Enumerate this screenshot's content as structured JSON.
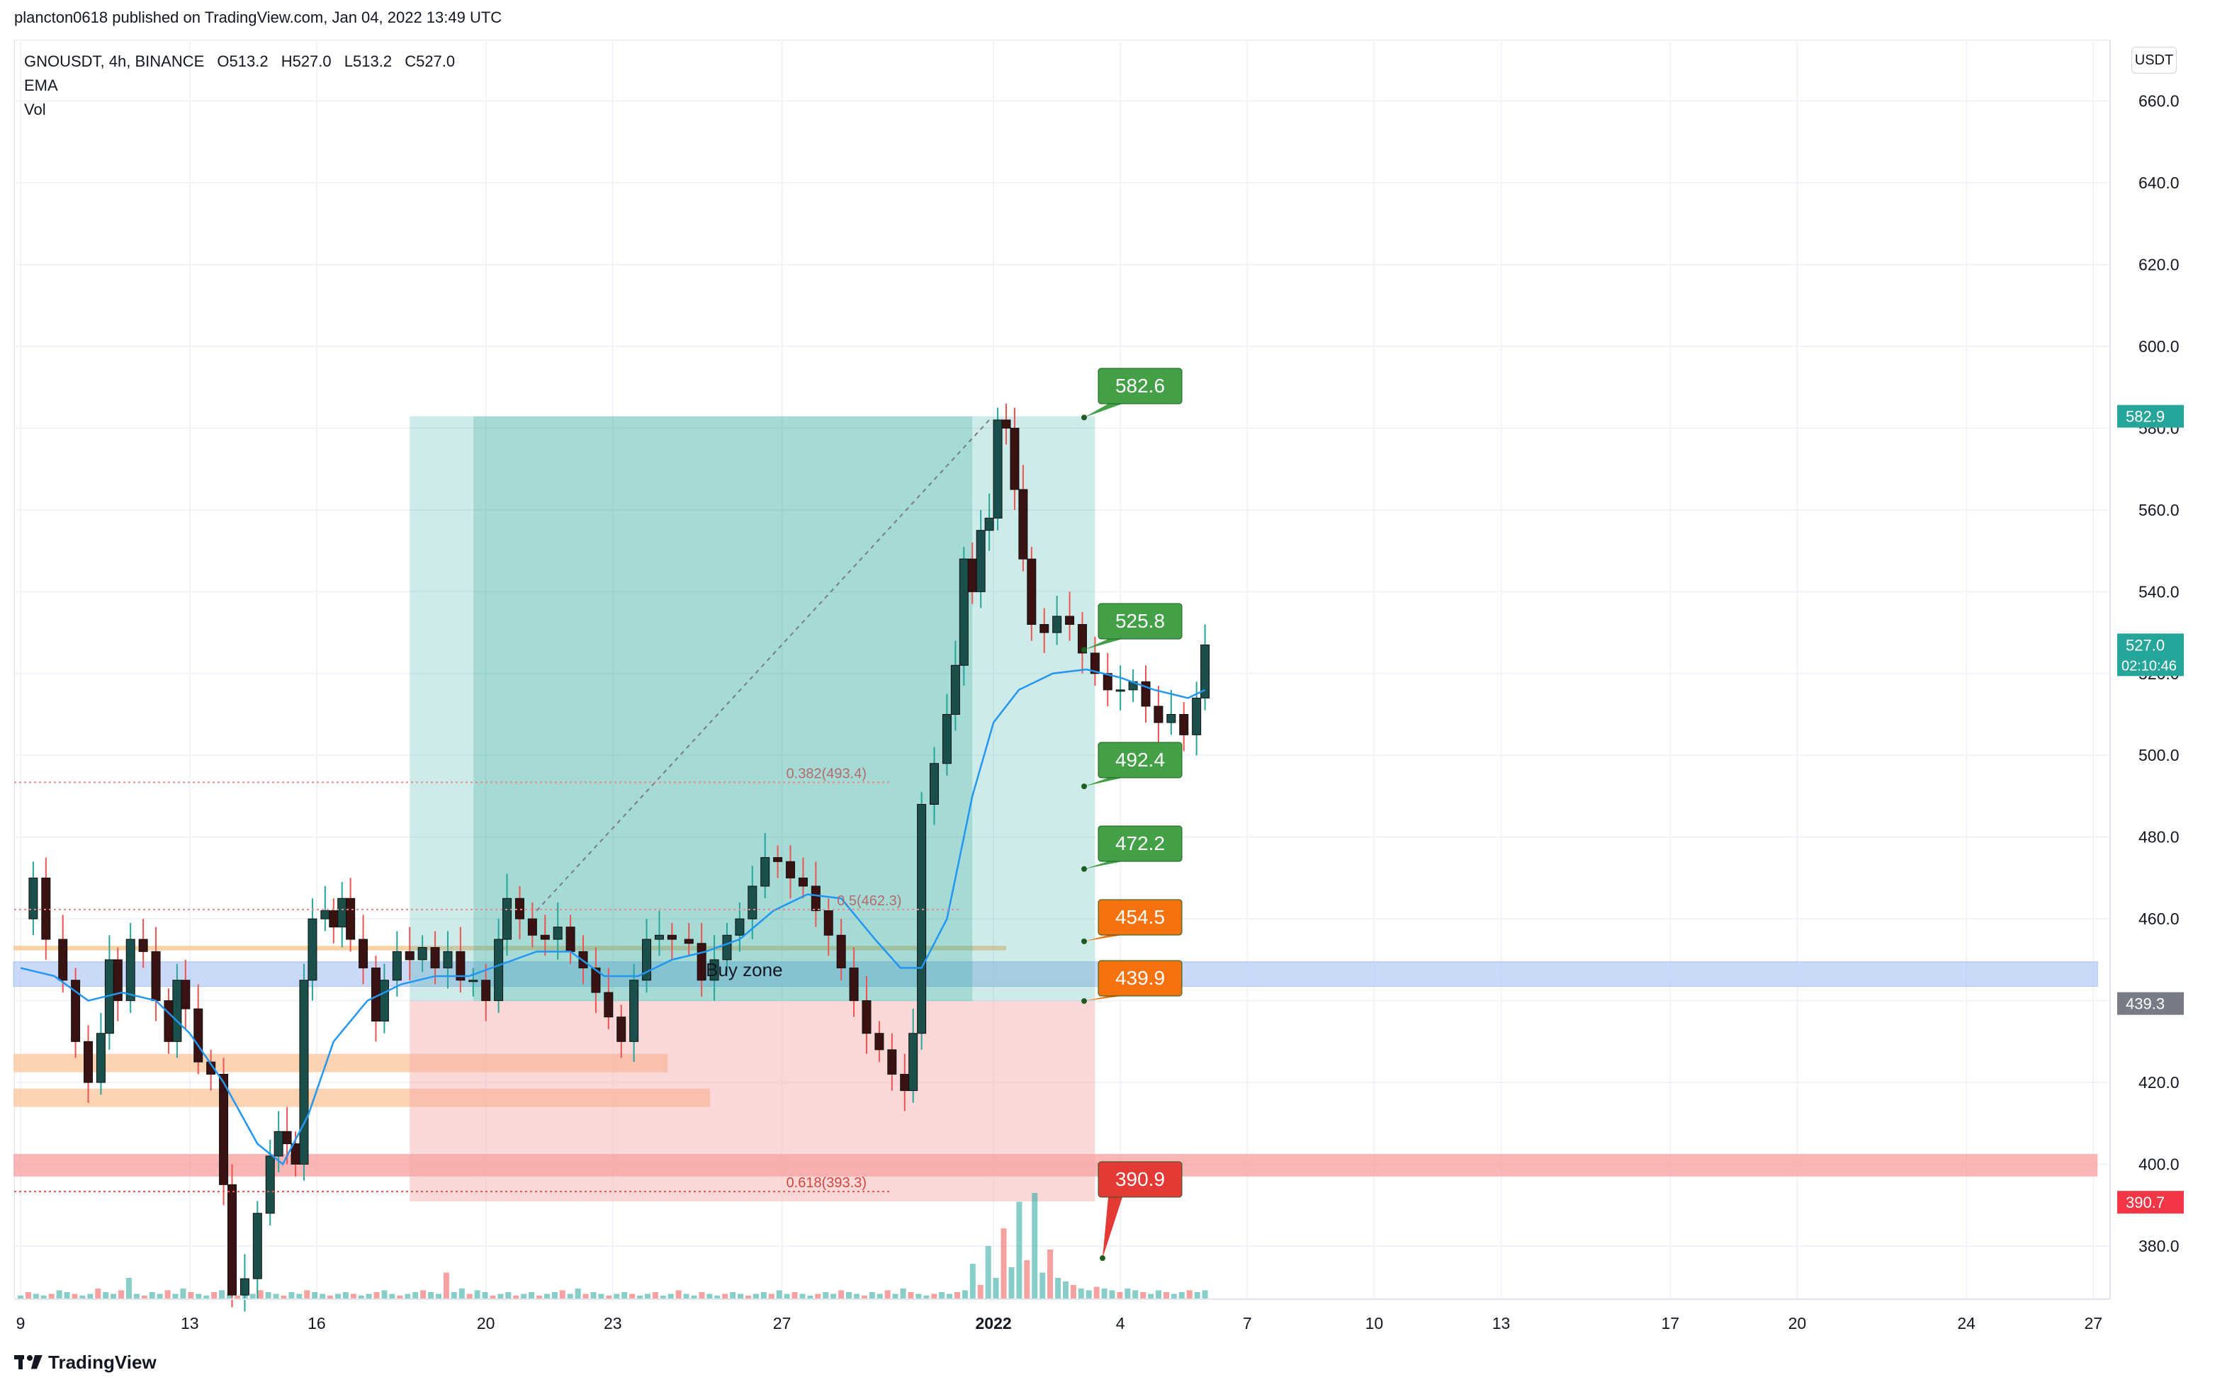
{
  "header": {
    "published": "plancton0618 published on TradingView.com, Jan 04, 2022 13:49 UTC"
  },
  "legend": {
    "symbol": "GNOUSDT, 4h, BINANCE",
    "open": "O513.2",
    "high": "H527.0",
    "low": "L513.2",
    "close": "C527.0",
    "indicator_1": "EMA",
    "indicator_2": "Vol"
  },
  "axis": {
    "unit": "USDT"
  },
  "brand": {
    "name": "TradingView"
  },
  "colors": {
    "up": "#26a69a",
    "down": "#ef5350",
    "candle_body_up": "#1a4f4b",
    "candle_body_down": "#3b1212",
    "ema": "#2196f3",
    "target_box": "#26a69a",
    "stop_box": "#f7a8a8",
    "callout_green": "#43a047",
    "callout_orange": "#f5720f",
    "callout_red": "#e53935",
    "blue_zone": "#b8cdf5",
    "grid": "#f0f3fa"
  },
  "chart_data": {
    "type": "candlestick",
    "interval": "4h",
    "y_range": [
      367,
      675
    ],
    "y_ticks": [
      380,
      400,
      420,
      440,
      460,
      480,
      500,
      520,
      540,
      560,
      580,
      600,
      620,
      640,
      660
    ],
    "y_tick_labels": [
      "380.0",
      "400.0",
      "420.0",
      "440.0",
      "460.0",
      "480.0",
      "500.0",
      "520.0",
      "540.0",
      "560.0",
      "580.0",
      "600.0",
      "620.0",
      "640.0",
      "660.0"
    ],
    "x_ticks": [
      {
        "t": 0,
        "label": "9"
      },
      {
        "t": 4,
        "label": "13"
      },
      {
        "t": 7,
        "label": "16"
      },
      {
        "t": 11,
        "label": "20"
      },
      {
        "t": 14,
        "label": "23"
      },
      {
        "t": 18,
        "label": "27"
      },
      {
        "t": 23,
        "label": "2022"
      },
      {
        "t": 26,
        "label": "4"
      },
      {
        "t": 29,
        "label": "7"
      },
      {
        "t": 32,
        "label": "10"
      },
      {
        "t": 35,
        "label": "13"
      },
      {
        "t": 39,
        "label": "17"
      },
      {
        "t": 42,
        "label": "20"
      },
      {
        "t": 46,
        "label": "24"
      },
      {
        "t": 49,
        "label": "27"
      }
    ],
    "bold_tick": "2022",
    "price_path": [
      [
        0.0,
        460
      ],
      [
        0.3,
        470
      ],
      [
        0.6,
        455
      ],
      [
        1.0,
        445
      ],
      [
        1.3,
        430
      ],
      [
        1.6,
        420
      ],
      [
        1.9,
        432
      ],
      [
        2.1,
        450
      ],
      [
        2.3,
        440
      ],
      [
        2.6,
        455
      ],
      [
        2.9,
        452
      ],
      [
        3.2,
        440
      ],
      [
        3.5,
        430
      ],
      [
        3.7,
        445
      ],
      [
        3.9,
        438
      ],
      [
        4.2,
        425
      ],
      [
        4.5,
        422
      ],
      [
        4.8,
        395
      ],
      [
        5.0,
        368
      ],
      [
        5.3,
        372
      ],
      [
        5.6,
        388
      ],
      [
        5.9,
        402
      ],
      [
        6.1,
        408
      ],
      [
        6.3,
        405
      ],
      [
        6.5,
        400
      ],
      [
        6.7,
        445
      ],
      [
        6.9,
        460
      ],
      [
        7.2,
        462
      ],
      [
        7.4,
        458
      ],
      [
        7.6,
        465
      ],
      [
        7.8,
        455
      ],
      [
        8.1,
        448
      ],
      [
        8.4,
        435
      ],
      [
        8.6,
        445
      ],
      [
        8.9,
        452
      ],
      [
        9.2,
        450
      ],
      [
        9.5,
        453
      ],
      [
        9.8,
        448
      ],
      [
        10.1,
        452
      ],
      [
        10.4,
        445
      ],
      [
        10.7,
        445
      ],
      [
        11.0,
        440
      ],
      [
        11.3,
        455
      ],
      [
        11.5,
        465
      ],
      [
        11.8,
        460
      ],
      [
        12.1,
        456
      ],
      [
        12.4,
        455
      ],
      [
        12.7,
        458
      ],
      [
        13.0,
        452
      ],
      [
        13.3,
        448
      ],
      [
        13.6,
        442
      ],
      [
        13.9,
        436
      ],
      [
        14.2,
        430
      ],
      [
        14.5,
        445
      ],
      [
        14.8,
        455
      ],
      [
        15.1,
        456
      ],
      [
        15.4,
        455
      ],
      [
        15.8,
        454
      ],
      [
        16.1,
        445
      ],
      [
        16.4,
        450
      ],
      [
        16.7,
        456
      ],
      [
        17.0,
        460
      ],
      [
        17.3,
        468
      ],
      [
        17.6,
        475
      ],
      [
        17.9,
        474
      ],
      [
        18.2,
        470
      ],
      [
        18.5,
        468
      ],
      [
        18.8,
        462
      ],
      [
        19.1,
        456
      ],
      [
        19.4,
        448
      ],
      [
        19.7,
        440
      ],
      [
        20.0,
        432
      ],
      [
        20.3,
        428
      ],
      [
        20.6,
        422
      ],
      [
        20.9,
        418
      ],
      [
        21.1,
        432
      ],
      [
        21.3,
        488
      ],
      [
        21.6,
        498
      ],
      [
        21.9,
        510
      ],
      [
        22.1,
        522
      ],
      [
        22.3,
        548
      ],
      [
        22.5,
        540
      ],
      [
        22.7,
        555
      ],
      [
        22.9,
        558
      ],
      [
        23.1,
        582
      ],
      [
        23.3,
        580
      ],
      [
        23.5,
        565
      ],
      [
        23.7,
        548
      ],
      [
        23.9,
        532
      ],
      [
        24.2,
        530
      ],
      [
        24.5,
        534
      ],
      [
        24.8,
        532
      ],
      [
        25.1,
        525
      ],
      [
        25.4,
        520
      ],
      [
        25.7,
        516
      ],
      [
        26.0,
        516
      ],
      [
        26.3,
        518
      ],
      [
        26.6,
        512
      ],
      [
        26.9,
        508
      ],
      [
        27.2,
        510
      ],
      [
        27.5,
        505
      ],
      [
        27.8,
        514
      ],
      [
        28.0,
        527
      ]
    ],
    "ema_path": [
      [
        0.0,
        448
      ],
      [
        0.8,
        446
      ],
      [
        1.6,
        440
      ],
      [
        2.4,
        442
      ],
      [
        3.2,
        440
      ],
      [
        4.0,
        432
      ],
      [
        4.8,
        420
      ],
      [
        5.6,
        405
      ],
      [
        6.2,
        400
      ],
      [
        6.8,
        412
      ],
      [
        7.4,
        430
      ],
      [
        8.2,
        440
      ],
      [
        9.0,
        444
      ],
      [
        9.8,
        446
      ],
      [
        10.6,
        446
      ],
      [
        11.4,
        449
      ],
      [
        12.2,
        452
      ],
      [
        13.0,
        452
      ],
      [
        13.8,
        446
      ],
      [
        14.6,
        446
      ],
      [
        15.4,
        450
      ],
      [
        16.2,
        452
      ],
      [
        17.0,
        455
      ],
      [
        17.8,
        462
      ],
      [
        18.6,
        466
      ],
      [
        19.4,
        465
      ],
      [
        20.2,
        455
      ],
      [
        20.8,
        448
      ],
      [
        21.3,
        448
      ],
      [
        21.9,
        460
      ],
      [
        22.5,
        490
      ],
      [
        23.0,
        508
      ],
      [
        23.6,
        516
      ],
      [
        24.4,
        520
      ],
      [
        25.2,
        521
      ],
      [
        26.0,
        519
      ],
      [
        26.8,
        516
      ],
      [
        27.6,
        514
      ],
      [
        28.0,
        516
      ]
    ],
    "fibonacci": [
      {
        "label": "0.382(493.4)",
        "price": 493.4
      },
      {
        "label": "0.5(462.3)",
        "price": 462.3
      },
      {
        "label": "0.618(393.3)",
        "price": 393.3
      }
    ],
    "annotation": "Buy zone",
    "price_callouts": [
      {
        "value": "582.6",
        "price": 582.6,
        "color": "green"
      },
      {
        "value": "525.8",
        "price": 525.8,
        "color": "green"
      },
      {
        "value": "492.4",
        "price": 492.4,
        "color": "green"
      },
      {
        "value": "472.2",
        "price": 472.2,
        "color": "green"
      },
      {
        "value": "454.5",
        "price": 454.5,
        "color": "orange"
      },
      {
        "value": "439.9",
        "price": 439.9,
        "color": "orange"
      },
      {
        "value": "390.9",
        "price": 390.9,
        "color": "red"
      }
    ],
    "price_tags": [
      {
        "value": "582.9",
        "price": 582.9,
        "color": "#26a69a"
      },
      {
        "value": "527.0",
        "sub": "02:10:46",
        "price": 527.0,
        "color": "#26a69a"
      },
      {
        "value": "439.3",
        "price": 439.3,
        "color": "#787b86"
      },
      {
        "value": "390.7",
        "price": 390.7,
        "color": "#f23645"
      }
    ],
    "position_tool": {
      "entry": 439.9,
      "target": 582.9,
      "stop": 390.9,
      "t_start": 9.2,
      "t_end": 25.4
    },
    "zones": [
      {
        "type": "blue",
        "from": 443.5,
        "to": 449.5,
        "t_start": 0,
        "t_end": 49.1
      },
      {
        "type": "red",
        "from": 397,
        "to": 402.5,
        "t_start": 0,
        "t_end": 49.1
      },
      {
        "type": "orange",
        "from": 422.5,
        "to": 427,
        "t_start": 0,
        "t_end": 15.3
      },
      {
        "type": "orange",
        "from": 414,
        "to": 418.5,
        "t_start": 0,
        "t_end": 16.3
      },
      {
        "type": "orange-line",
        "from": 452.3,
        "to": 453.4,
        "t_start": 0,
        "t_end": 23.3
      }
    ],
    "volume": [
      2,
      4,
      3,
      2,
      3,
      5,
      4,
      3,
      2,
      3,
      6,
      4,
      3,
      5,
      12,
      3,
      2,
      4,
      3,
      5,
      3,
      6,
      4,
      3,
      2,
      4,
      5,
      3,
      2,
      4,
      3,
      5,
      4,
      3,
      2,
      4,
      3,
      5,
      4,
      3,
      2,
      3,
      4,
      3,
      2,
      3,
      4,
      5,
      3,
      2,
      3,
      4,
      5,
      4,
      3,
      15,
      4,
      6,
      3,
      5,
      4,
      2,
      3,
      4,
      2,
      3,
      4,
      2,
      3,
      4,
      5,
      3,
      6,
      3,
      4,
      3,
      2,
      3,
      4,
      3,
      2,
      3,
      4,
      2,
      3,
      5,
      3,
      2,
      4,
      3,
      2,
      3,
      4,
      3,
      2,
      3,
      4,
      3,
      5,
      3,
      4,
      3,
      2,
      3,
      4,
      3,
      5,
      4,
      3,
      2,
      4,
      3,
      5,
      3,
      6,
      4,
      3,
      2,
      3,
      4,
      3,
      4,
      5,
      20,
      8,
      30,
      12,
      40,
      18,
      55,
      22,
      60,
      15,
      28,
      12,
      10,
      8,
      6,
      5,
      7,
      6,
      5,
      4,
      6,
      5,
      4,
      3,
      5,
      4,
      3,
      4,
      5,
      4,
      5
    ],
    "volume_max": 60
  }
}
